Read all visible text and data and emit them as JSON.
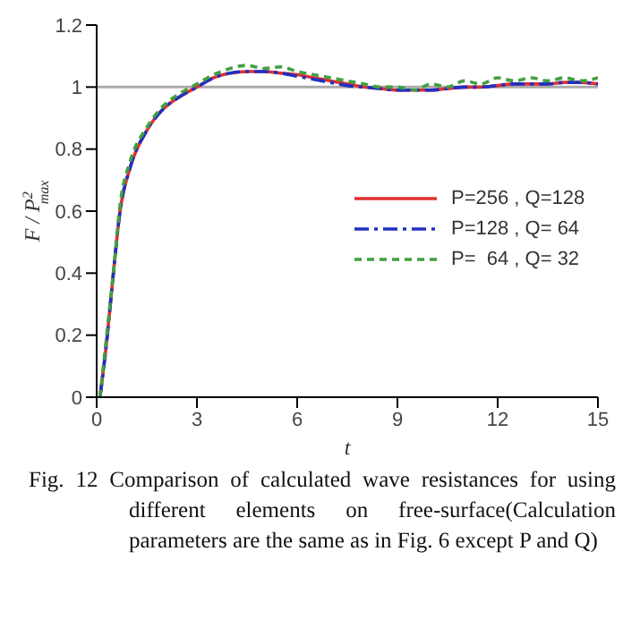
{
  "chart_data": {
    "type": "line",
    "xlabel": "t",
    "ylabel": "F / P$^{2}$$_{max}$",
    "x": [
      0.1,
      0.3,
      0.5,
      0.7,
      1,
      1.5,
      2,
      2.5,
      3,
      3.5,
      4,
      4.5,
      5,
      5.5,
      6,
      6.5,
      7,
      7.5,
      8,
      8.5,
      9,
      9.5,
      10,
      10.5,
      11,
      11.5,
      12,
      12.5,
      13,
      13.5,
      14,
      14.5,
      15
    ],
    "series": [
      {
        "name": "P=256 , Q=128",
        "color": "#e03030",
        "line_style": "solid",
        "values": [
          0,
          0.18,
          0.4,
          0.6,
          0.74,
          0.86,
          0.93,
          0.97,
          1.0,
          1.03,
          1.045,
          1.05,
          1.05,
          1.045,
          1.04,
          1.03,
          1.02,
          1.01,
          1.0,
          0.995,
          0.99,
          0.99,
          0.99,
          0.995,
          1.0,
          1.0,
          1.005,
          1.01,
          1.01,
          1.01,
          1.015,
          1.015,
          1.01
        ]
      },
      {
        "name": "P=128 , Q= 64",
        "color": "#2030c0",
        "line_style": "dashdot",
        "values": [
          0,
          0.18,
          0.4,
          0.6,
          0.74,
          0.86,
          0.93,
          0.97,
          1.0,
          1.03,
          1.045,
          1.05,
          1.05,
          1.045,
          1.035,
          1.025,
          1.015,
          1.005,
          1.0,
          0.995,
          0.99,
          0.99,
          0.99,
          0.995,
          1.0,
          1.0,
          1.005,
          1.01,
          1.01,
          1.01,
          1.015,
          1.015,
          1.01
        ]
      },
      {
        "name": "P=  64 , Q= 32",
        "color": "#40a040",
        "line_style": "dashed",
        "values": [
          0,
          0.2,
          0.4,
          0.62,
          0.76,
          0.87,
          0.94,
          0.98,
          1.01,
          1.04,
          1.06,
          1.07,
          1.06,
          1.065,
          1.05,
          1.04,
          1.03,
          1.02,
          1.01,
          1.0,
          1.0,
          0.99,
          1.01,
          1.0,
          1.02,
          1.01,
          1.03,
          1.02,
          1.03,
          1.02,
          1.03,
          1.02,
          1.03
        ]
      }
    ],
    "xlim": [
      0,
      15
    ],
    "xticks": [
      0,
      3,
      6,
      9,
      12,
      15
    ],
    "ylim": [
      0,
      1.2
    ],
    "yticks": [
      0,
      0.2,
      0.4,
      0.6,
      0.8,
      1,
      1.2
    ],
    "ref_lines": [
      {
        "axis": "y",
        "value": 1,
        "color": "#aaaaaa"
      }
    ],
    "grid": false,
    "legend": "right",
    "marker": "none",
    "annotations": [
      "Fig. 12  Comparison of calculated wave resistances for using different elements on free-surface(Calculation parameters are the same as in Fig. 6 except P and Q)"
    ]
  }
}
